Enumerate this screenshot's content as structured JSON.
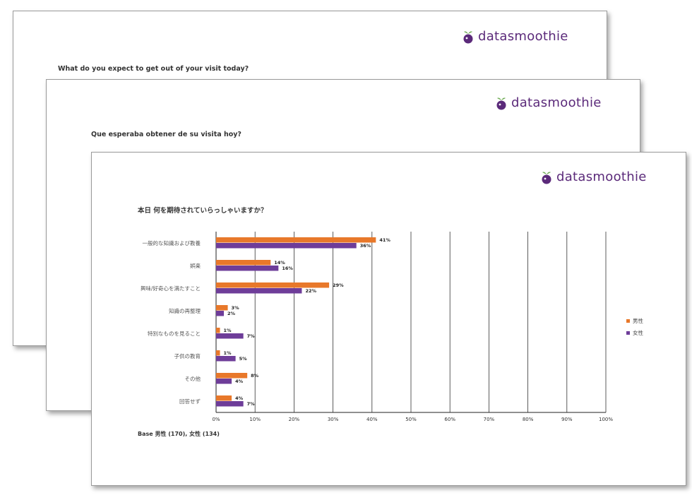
{
  "brand": {
    "name": "datasmoothie",
    "purple": "#5b2a7a",
    "green": "#6aa84f"
  },
  "slides": [
    {
      "question": "What do you expect to get out of your visit today?"
    },
    {
      "question": "Que esperaba obtener de su visita hoy?"
    },
    {
      "question": "本日 何を期待されていらっしゃいますか？"
    }
  ],
  "chart_data": {
    "type": "bar",
    "orientation": "horizontal",
    "categories": [
      "一般的な知識および教養",
      "娯楽",
      "興味/好奇心を満たすこと",
      "知識の再整理",
      "特別なものを見ること",
      "子供の教育",
      "その他",
      "回答せず"
    ],
    "series": [
      {
        "name": "男性",
        "color": "#e8782a",
        "values": [
          41,
          14,
          29,
          3,
          1,
          1,
          8,
          4
        ]
      },
      {
        "name": "女性",
        "color": "#6e3d99",
        "values": [
          36,
          16,
          22,
          2,
          7,
          5,
          4,
          7
        ]
      }
    ],
    "xlim": [
      0,
      100
    ],
    "xticks": [
      "0%",
      "10%",
      "20%",
      "30%",
      "40%",
      "50%",
      "60%",
      "70%",
      "80%",
      "90%",
      "100%"
    ],
    "value_suffix": "%",
    "grid": true,
    "legend_position": "right",
    "base_note": "Base 男性 (170), 女性 (134)"
  }
}
